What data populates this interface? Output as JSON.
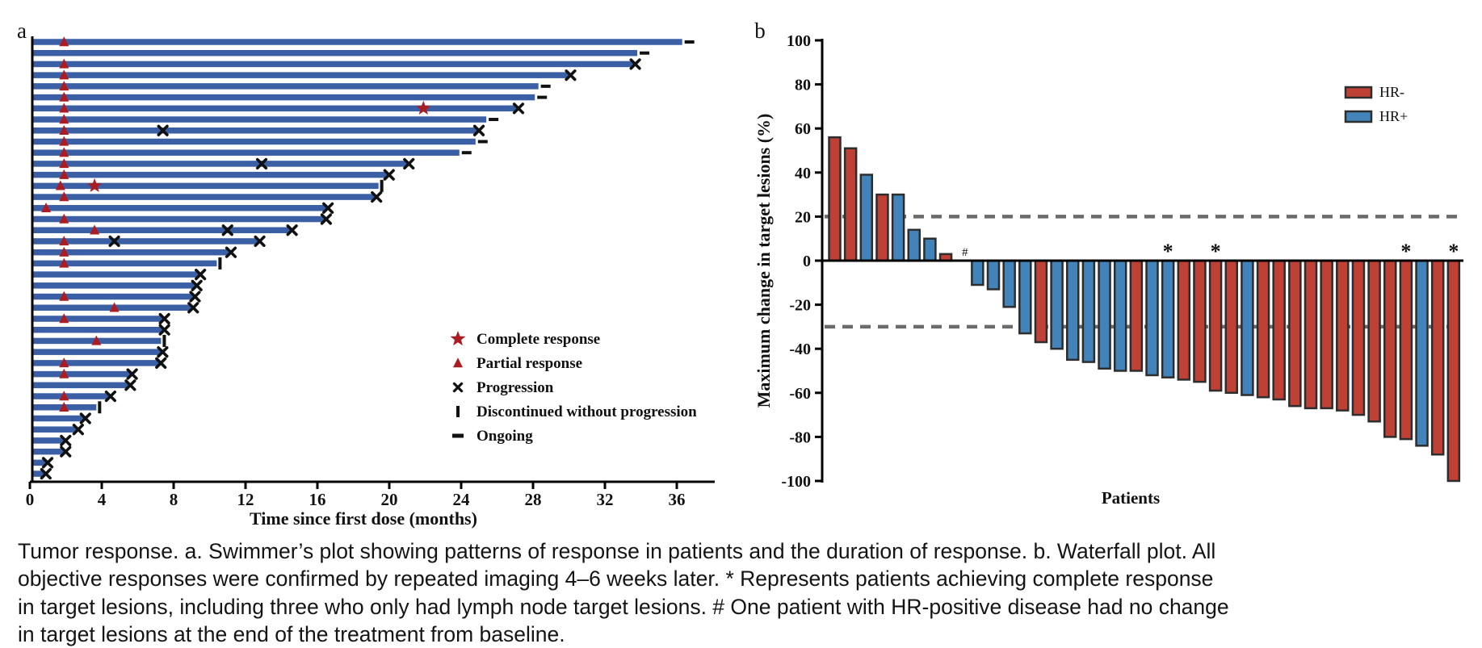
{
  "figure": {
    "panel_a_label": "a",
    "panel_b_label": "b",
    "caption": "Tumor response. a. Swimmer’s plot showing patterns of response in patients and the duration of response. b. Waterfall plot. All objective responses were confirmed by repeated imaging 4–6 weeks later. * Represents patients achieving complete response in target lesions, including three who only had lymph node target lesions. # One patient with HR-positive disease had no change in target lesions at the end of the treatment from baseline."
  },
  "chart_data": [
    {
      "type": "bar",
      "variant": "swimmer",
      "title": "",
      "xlabel": "Time since first dose (months)",
      "ylabel": "",
      "xlim": [
        0,
        38
      ],
      "x_ticks": [
        0,
        4,
        8,
        12,
        16,
        20,
        24,
        28,
        32,
        36
      ],
      "grid": false,
      "bar_color": "#3a5fa5",
      "marker_red": "#ab1d22",
      "marker_black": "#111111",
      "legend_position": "right-middle",
      "legend": [
        {
          "marker": "star",
          "color": "#ab1d22",
          "label": "Complete response"
        },
        {
          "marker": "triangle",
          "color": "#ab1d22",
          "label": "Partial response"
        },
        {
          "marker": "x",
          "color": "#111111",
          "label": "Progression"
        },
        {
          "marker": "bar",
          "color": "#111111",
          "label": "Discontinued without progression"
        },
        {
          "marker": "dash",
          "color": "#111111",
          "label": "Ongoing"
        }
      ],
      "patients": [
        {
          "duration": 36.3,
          "end": "ongoing",
          "events": [
            {
              "type": "pr",
              "t": 1.9
            }
          ]
        },
        {
          "duration": 33.8,
          "end": "ongoing",
          "events": []
        },
        {
          "duration": 33.6,
          "end": "progression",
          "events": [
            {
              "type": "pr",
              "t": 1.9
            }
          ]
        },
        {
          "duration": 30.0,
          "end": "progression",
          "events": [
            {
              "type": "pr",
              "t": 1.9
            }
          ]
        },
        {
          "duration": 28.3,
          "end": "ongoing",
          "events": [
            {
              "type": "pr",
              "t": 1.9
            }
          ]
        },
        {
          "duration": 28.1,
          "end": "ongoing",
          "events": [
            {
              "type": "pr",
              "t": 1.9
            }
          ]
        },
        {
          "duration": 27.1,
          "end": "progression",
          "events": [
            {
              "type": "pr",
              "t": 1.9
            },
            {
              "type": "cr",
              "t": 21.9
            }
          ]
        },
        {
          "duration": 25.4,
          "end": "ongoing",
          "events": [
            {
              "type": "pr",
              "t": 1.9
            }
          ]
        },
        {
          "duration": 24.9,
          "end": "progression",
          "events": [
            {
              "type": "pr",
              "t": 1.9
            },
            {
              "type": "px",
              "t": 7.4
            }
          ]
        },
        {
          "duration": 24.8,
          "end": "ongoing",
          "events": [
            {
              "type": "pr",
              "t": 1.9
            }
          ]
        },
        {
          "duration": 23.9,
          "end": "ongoing",
          "events": [
            {
              "type": "pr",
              "t": 1.9
            }
          ]
        },
        {
          "duration": 21.0,
          "end": "progression",
          "events": [
            {
              "type": "pr",
              "t": 1.9
            },
            {
              "type": "px",
              "t": 12.9
            }
          ]
        },
        {
          "duration": 19.9,
          "end": "progression",
          "events": [
            {
              "type": "pr",
              "t": 1.9
            }
          ]
        },
        {
          "duration": 19.4,
          "end": "discontinued",
          "events": [
            {
              "type": "pr",
              "t": 1.7
            },
            {
              "type": "cr",
              "t": 3.6
            }
          ]
        },
        {
          "duration": 19.2,
          "end": "progression",
          "events": [
            {
              "type": "pr",
              "t": 1.9
            }
          ]
        },
        {
          "duration": 16.5,
          "end": "progression",
          "events": [
            {
              "type": "pr",
              "t": 0.9
            }
          ]
        },
        {
          "duration": 16.4,
          "end": "progression",
          "events": [
            {
              "type": "pr",
              "t": 1.9
            }
          ]
        },
        {
          "duration": 14.5,
          "end": "progression",
          "events": [
            {
              "type": "pr",
              "t": 3.6
            },
            {
              "type": "px",
              "t": 11.0
            }
          ]
        },
        {
          "duration": 12.7,
          "end": "progression",
          "events": [
            {
              "type": "pr",
              "t": 1.9
            },
            {
              "type": "px",
              "t": 4.7
            }
          ]
        },
        {
          "duration": 11.1,
          "end": "progression",
          "events": [
            {
              "type": "pr",
              "t": 1.9
            }
          ]
        },
        {
          "duration": 10.4,
          "end": "discontinued",
          "events": [
            {
              "type": "pr",
              "t": 1.9
            }
          ]
        },
        {
          "duration": 9.4,
          "end": "progression",
          "events": []
        },
        {
          "duration": 9.2,
          "end": "progression",
          "events": []
        },
        {
          "duration": 9.1,
          "end": "progression",
          "events": [
            {
              "type": "pr",
              "t": 1.9
            }
          ]
        },
        {
          "duration": 9.0,
          "end": "progression",
          "events": [
            {
              "type": "pr",
              "t": 4.7
            }
          ]
        },
        {
          "duration": 7.4,
          "end": "progression",
          "events": [
            {
              "type": "pr",
              "t": 1.9
            }
          ]
        },
        {
          "duration": 7.4,
          "end": "progression",
          "events": []
        },
        {
          "duration": 7.3,
          "end": "discontinued",
          "events": [
            {
              "type": "pr",
              "t": 3.7
            }
          ]
        },
        {
          "duration": 7.3,
          "end": "progression",
          "events": []
        },
        {
          "duration": 7.2,
          "end": "progression",
          "events": [
            {
              "type": "pr",
              "t": 1.9
            }
          ]
        },
        {
          "duration": 5.6,
          "end": "progression",
          "events": [
            {
              "type": "pr",
              "t": 1.9
            }
          ]
        },
        {
          "duration": 5.5,
          "end": "progression",
          "events": []
        },
        {
          "duration": 4.4,
          "end": "progression",
          "events": [
            {
              "type": "pr",
              "t": 1.9
            }
          ]
        },
        {
          "duration": 3.7,
          "end": "discontinued",
          "events": [
            {
              "type": "pr",
              "t": 1.9
            }
          ]
        },
        {
          "duration": 3.0,
          "end": "progression",
          "events": []
        },
        {
          "duration": 2.6,
          "end": "progression",
          "events": []
        },
        {
          "duration": 1.9,
          "end": "progression",
          "events": []
        },
        {
          "duration": 1.9,
          "end": "progression",
          "events": []
        },
        {
          "duration": 0.9,
          "end": "progression",
          "events": []
        },
        {
          "duration": 0.8,
          "end": "progression",
          "events": []
        }
      ]
    },
    {
      "type": "bar",
      "variant": "waterfall",
      "title": "",
      "xlabel": "Patients",
      "ylabel": "Maximum change in target lesions (%)",
      "ylim": [
        -100,
        100
      ],
      "y_ticks": [
        100,
        80,
        60,
        40,
        20,
        0,
        -20,
        -40,
        -60,
        -80,
        -100
      ],
      "grid": false,
      "reference_lines": [
        20,
        -30
      ],
      "reference_line_color": "#6b6b6b",
      "bar_outline_color": "#2d2d2d",
      "legend_position": "top-right",
      "legend": [
        {
          "label": "HR-",
          "color": "#bf4136"
        },
        {
          "label": "HR+",
          "color": "#4284ba"
        }
      ],
      "bars": [
        {
          "value": 56,
          "group": "HR-"
        },
        {
          "value": 51,
          "group": "HR-"
        },
        {
          "value": 39,
          "group": "HR+"
        },
        {
          "value": 30,
          "group": "HR-"
        },
        {
          "value": 30,
          "group": "HR+"
        },
        {
          "value": 14,
          "group": "HR+"
        },
        {
          "value": 10,
          "group": "HR+"
        },
        {
          "value": 3,
          "group": "HR-"
        },
        {
          "value": 0,
          "group": "HR+",
          "annotation": "#"
        },
        {
          "value": -11,
          "group": "HR+"
        },
        {
          "value": -13,
          "group": "HR+"
        },
        {
          "value": -21,
          "group": "HR+"
        },
        {
          "value": -33,
          "group": "HR+"
        },
        {
          "value": -37,
          "group": "HR-"
        },
        {
          "value": -40,
          "group": "HR+"
        },
        {
          "value": -45,
          "group": "HR+"
        },
        {
          "value": -46,
          "group": "HR+"
        },
        {
          "value": -49,
          "group": "HR+"
        },
        {
          "value": -50,
          "group": "HR+"
        },
        {
          "value": -50,
          "group": "HR-"
        },
        {
          "value": -52,
          "group": "HR+"
        },
        {
          "value": -53,
          "group": "HR+",
          "annotation": "*"
        },
        {
          "value": -54,
          "group": "HR-"
        },
        {
          "value": -55,
          "group": "HR-"
        },
        {
          "value": -59,
          "group": "HR-",
          "annotation": "*"
        },
        {
          "value": -60,
          "group": "HR-"
        },
        {
          "value": -61,
          "group": "HR+"
        },
        {
          "value": -62,
          "group": "HR-"
        },
        {
          "value": -63,
          "group": "HR-"
        },
        {
          "value": -66,
          "group": "HR-"
        },
        {
          "value": -67,
          "group": "HR-"
        },
        {
          "value": -67,
          "group": "HR-"
        },
        {
          "value": -68,
          "group": "HR-"
        },
        {
          "value": -70,
          "group": "HR-"
        },
        {
          "value": -73,
          "group": "HR-"
        },
        {
          "value": -80,
          "group": "HR-"
        },
        {
          "value": -81,
          "group": "HR-",
          "annotation": "*"
        },
        {
          "value": -84,
          "group": "HR+"
        },
        {
          "value": -88,
          "group": "HR-"
        },
        {
          "value": -100,
          "group": "HR-",
          "annotation": "*"
        }
      ]
    }
  ]
}
